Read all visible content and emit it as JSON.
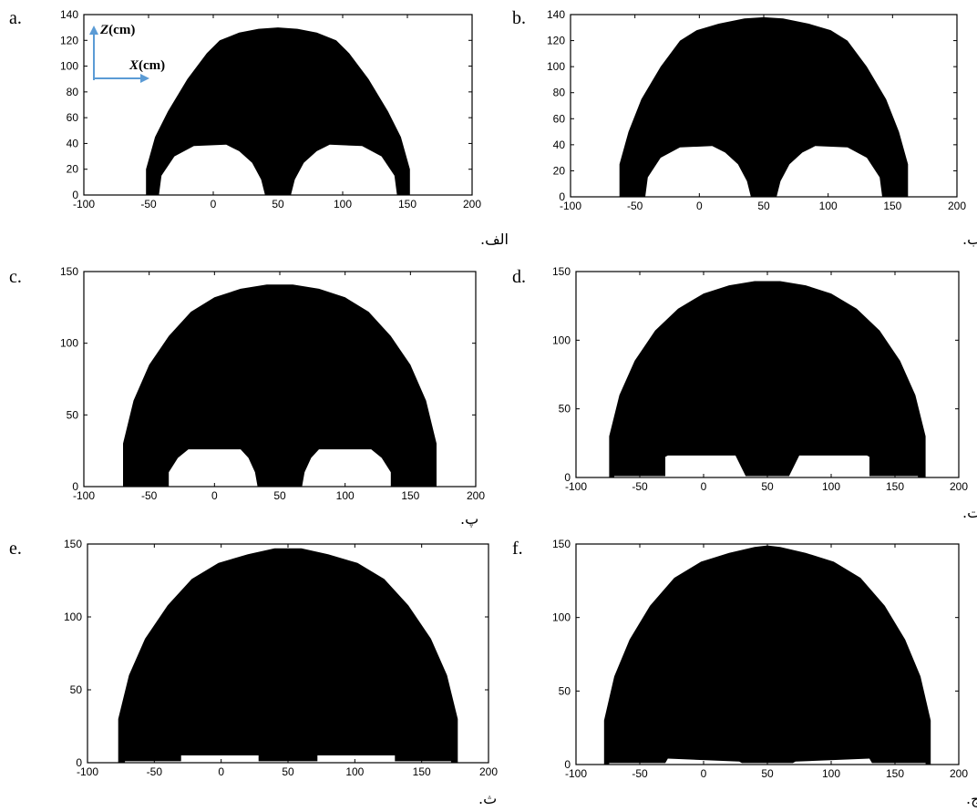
{
  "figure": {
    "ink_color": "#000000",
    "arrow_color": "#5b9bd5",
    "axis_names": {
      "z_var": "Z",
      "z_unit": "(cm)",
      "x_var": "X",
      "x_unit": "(cm)"
    }
  },
  "chart_data": [
    {
      "id": "a",
      "type": "area",
      "panel_letter": "a.",
      "caption": "الف.",
      "xlim": [
        -100,
        200
      ],
      "ylim": [
        0,
        140
      ],
      "xticks": [
        -100,
        -50,
        0,
        50,
        100,
        150,
        200
      ],
      "yticks": [
        0,
        20,
        40,
        60,
        80,
        100,
        120,
        140
      ],
      "boundary": [
        [
          -52,
          0
        ],
        [
          -52,
          20
        ],
        [
          -45,
          45
        ],
        [
          -35,
          65
        ],
        [
          -20,
          90
        ],
        [
          -5,
          110
        ],
        [
          5,
          120
        ],
        [
          20,
          126
        ],
        [
          35,
          129
        ],
        [
          50,
          130
        ],
        [
          65,
          129
        ],
        [
          80,
          126
        ],
        [
          95,
          120
        ],
        [
          105,
          110
        ],
        [
          120,
          90
        ],
        [
          135,
          65
        ],
        [
          145,
          45
        ],
        [
          152,
          20
        ],
        [
          152,
          0
        ]
      ],
      "cutouts": [
        [
          [
            -42,
            0
          ],
          [
            -40,
            15
          ],
          [
            -30,
            30
          ],
          [
            -15,
            38
          ],
          [
            10,
            39
          ],
          [
            20,
            34
          ],
          [
            30,
            25
          ],
          [
            37,
            12
          ],
          [
            40,
            0
          ]
        ],
        [
          [
            60,
            0
          ],
          [
            63,
            12
          ],
          [
            70,
            25
          ],
          [
            80,
            34
          ],
          [
            90,
            39
          ],
          [
            115,
            38
          ],
          [
            130,
            30
          ],
          [
            140,
            15
          ],
          [
            142,
            0
          ]
        ]
      ]
    },
    {
      "id": "b",
      "type": "area",
      "panel_letter": "b.",
      "caption": "ب.",
      "xlim": [
        -100,
        200
      ],
      "ylim": [
        0,
        140
      ],
      "xticks": [
        -100,
        -50,
        0,
        50,
        100,
        150,
        200
      ],
      "yticks": [
        0,
        20,
        40,
        60,
        80,
        100,
        120,
        140
      ],
      "boundary": [
        [
          -62,
          0
        ],
        [
          -62,
          25
        ],
        [
          -55,
          50
        ],
        [
          -45,
          75
        ],
        [
          -30,
          100
        ],
        [
          -15,
          120
        ],
        [
          -2,
          128
        ],
        [
          15,
          133
        ],
        [
          35,
          137
        ],
        [
          50,
          138
        ],
        [
          65,
          137
        ],
        [
          85,
          133
        ],
        [
          102,
          128
        ],
        [
          115,
          120
        ],
        [
          130,
          100
        ],
        [
          145,
          75
        ],
        [
          155,
          50
        ],
        [
          162,
          25
        ],
        [
          162,
          0
        ]
      ],
      "cutouts": [
        [
          [
            -42,
            0
          ],
          [
            -40,
            15
          ],
          [
            -30,
            30
          ],
          [
            -15,
            38
          ],
          [
            10,
            39
          ],
          [
            20,
            34
          ],
          [
            30,
            25
          ],
          [
            37,
            12
          ],
          [
            40,
            0
          ]
        ],
        [
          [
            60,
            0
          ],
          [
            63,
            12
          ],
          [
            70,
            25
          ],
          [
            80,
            34
          ],
          [
            90,
            39
          ],
          [
            115,
            38
          ],
          [
            130,
            30
          ],
          [
            140,
            15
          ],
          [
            142,
            0
          ]
        ]
      ]
    },
    {
      "id": "c",
      "type": "area",
      "panel_letter": "c.",
      "caption": "پ.",
      "xlim": [
        -100,
        200
      ],
      "ylim": [
        0,
        150
      ],
      "xticks": [
        -100,
        -50,
        0,
        50,
        100,
        150,
        200
      ],
      "yticks": [
        0,
        50,
        100,
        150
      ],
      "boundary": [
        [
          -70,
          0
        ],
        [
          -70,
          30
        ],
        [
          -62,
          60
        ],
        [
          -50,
          85
        ],
        [
          -35,
          105
        ],
        [
          -18,
          122
        ],
        [
          0,
          132
        ],
        [
          20,
          138
        ],
        [
          40,
          141
        ],
        [
          50,
          141
        ],
        [
          60,
          141
        ],
        [
          80,
          138
        ],
        [
          100,
          132
        ],
        [
          118,
          122
        ],
        [
          135,
          105
        ],
        [
          150,
          85
        ],
        [
          162,
          60
        ],
        [
          170,
          30
        ],
        [
          170,
          0
        ]
      ],
      "cutouts": [
        [
          [
            -35,
            0
          ],
          [
            -35,
            10
          ],
          [
            -28,
            20
          ],
          [
            -20,
            26
          ],
          [
            20,
            26
          ],
          [
            26,
            20
          ],
          [
            31,
            10
          ],
          [
            33,
            0
          ]
        ],
        [
          [
            67,
            0
          ],
          [
            69,
            10
          ],
          [
            74,
            20
          ],
          [
            80,
            26
          ],
          [
            120,
            26
          ],
          [
            128,
            20
          ],
          [
            135,
            10
          ],
          [
            135,
            0
          ]
        ]
      ]
    },
    {
      "id": "d",
      "type": "area",
      "panel_letter": "d.",
      "caption": "ت.",
      "xlim": [
        -100,
        200
      ],
      "ylim": [
        0,
        150
      ],
      "xticks": [
        -100,
        -50,
        0,
        50,
        100,
        150,
        200
      ],
      "yticks": [
        0,
        50,
        100,
        150
      ],
      "boundary": [
        [
          -74,
          0
        ],
        [
          -74,
          30
        ],
        [
          -66,
          60
        ],
        [
          -54,
          85
        ],
        [
          -38,
          107
        ],
        [
          -20,
          123
        ],
        [
          0,
          134
        ],
        [
          20,
          140
        ],
        [
          40,
          143
        ],
        [
          50,
          143
        ],
        [
          60,
          143
        ],
        [
          80,
          140
        ],
        [
          100,
          134
        ],
        [
          120,
          123
        ],
        [
          138,
          107
        ],
        [
          154,
          85
        ],
        [
          166,
          60
        ],
        [
          174,
          30
        ],
        [
          174,
          0
        ]
      ],
      "cutouts": [
        [
          [
            -70,
            0
          ],
          [
            -70,
            1
          ],
          [
            -30,
            1
          ],
          [
            -30,
            15
          ],
          [
            -28,
            16
          ],
          [
            25,
            16
          ],
          [
            33,
            1
          ],
          [
            67,
            1
          ],
          [
            75,
            16
          ],
          [
            128,
            16
          ],
          [
            130,
            15
          ],
          [
            130,
            1
          ],
          [
            168,
            1
          ],
          [
            168,
            0
          ]
        ]
      ]
    },
    {
      "id": "e",
      "type": "area",
      "panel_letter": "e.",
      "caption": "ث.",
      "xlim": [
        -100,
        200
      ],
      "ylim": [
        0,
        150
      ],
      "xticks": [
        -100,
        -50,
        0,
        50,
        100,
        150,
        200
      ],
      "yticks": [
        0,
        50,
        100,
        150
      ],
      "boundary": [
        [
          -77,
          0
        ],
        [
          -77,
          30
        ],
        [
          -69,
          60
        ],
        [
          -57,
          85
        ],
        [
          -40,
          108
        ],
        [
          -22,
          126
        ],
        [
          -2,
          137
        ],
        [
          20,
          143
        ],
        [
          40,
          147
        ],
        [
          50,
          147
        ],
        [
          60,
          147
        ],
        [
          80,
          143
        ],
        [
          102,
          137
        ],
        [
          122,
          126
        ],
        [
          140,
          108
        ],
        [
          157,
          85
        ],
        [
          169,
          60
        ],
        [
          177,
          30
        ],
        [
          177,
          0
        ]
      ],
      "cutouts": [
        [
          [
            -72,
            0
          ],
          [
            -72,
            1
          ],
          [
            -30,
            1
          ],
          [
            -30,
            5
          ],
          [
            28,
            5
          ],
          [
            28,
            1
          ],
          [
            72,
            1
          ],
          [
            72,
            5
          ],
          [
            130,
            5
          ],
          [
            130,
            1
          ],
          [
            172,
            1
          ],
          [
            172,
            0
          ]
        ]
      ]
    },
    {
      "id": "f",
      "type": "area",
      "panel_letter": "f.",
      "caption": "ج.",
      "xlim": [
        -100,
        200
      ],
      "ylim": [
        0,
        150
      ],
      "xticks": [
        -100,
        -50,
        0,
        50,
        100,
        150,
        200
      ],
      "yticks": [
        0,
        50,
        100,
        150
      ],
      "boundary": [
        [
          -78,
          0
        ],
        [
          -78,
          30
        ],
        [
          -70,
          60
        ],
        [
          -58,
          85
        ],
        [
          -42,
          108
        ],
        [
          -23,
          127
        ],
        [
          -2,
          138
        ],
        [
          20,
          144
        ],
        [
          40,
          148
        ],
        [
          50,
          149
        ],
        [
          60,
          148
        ],
        [
          80,
          144
        ],
        [
          102,
          138
        ],
        [
          123,
          127
        ],
        [
          142,
          108
        ],
        [
          158,
          85
        ],
        [
          170,
          60
        ],
        [
          178,
          30
        ],
        [
          178,
          0
        ]
      ],
      "cutouts": [
        [
          [
            -74,
            0
          ],
          [
            -74,
            1
          ],
          [
            -30,
            1
          ],
          [
            -28,
            4
          ],
          [
            28,
            2
          ],
          [
            30,
            1
          ],
          [
            70,
            1
          ],
          [
            72,
            2
          ],
          [
            130,
            4
          ],
          [
            132,
            1
          ],
          [
            174,
            1
          ],
          [
            174,
            0
          ]
        ]
      ]
    }
  ]
}
